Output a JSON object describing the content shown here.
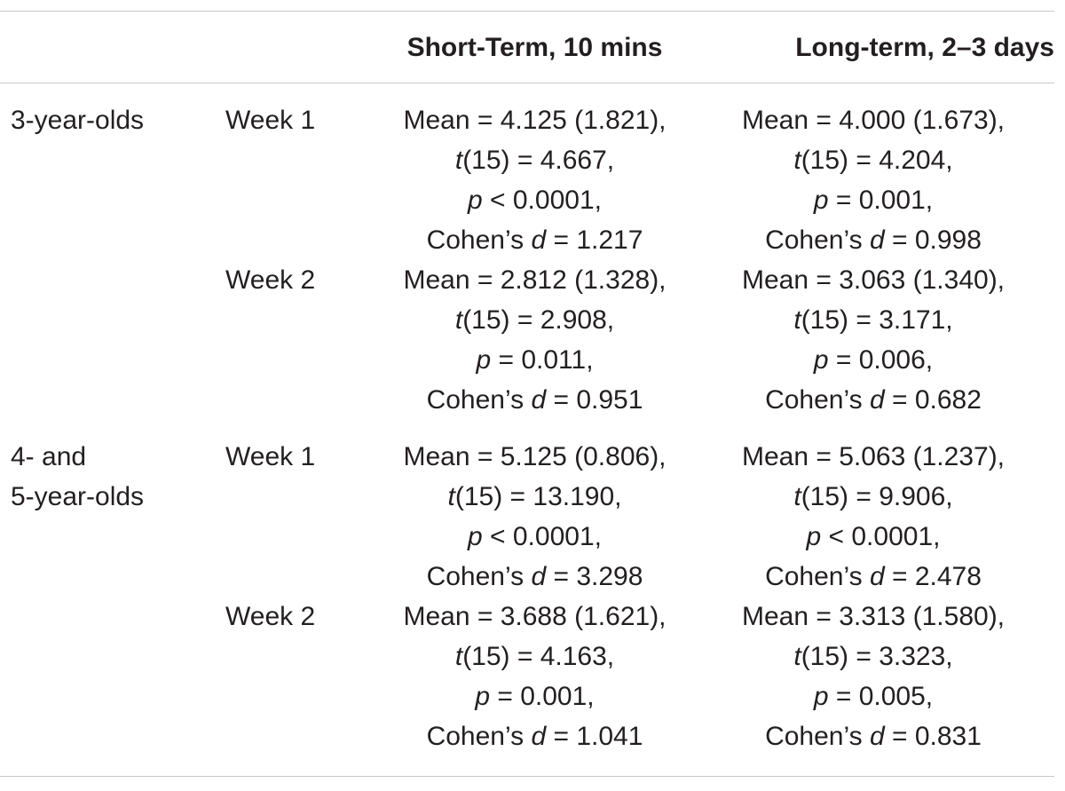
{
  "table": {
    "headers": {
      "group": "",
      "week": "",
      "short_term": "Short-Term, 10 mins",
      "long_term": "Long-term, 2–3 days"
    },
    "groups": [
      {
        "label_lines": [
          "3-year-olds"
        ],
        "rows": [
          {
            "week": "Week 1",
            "short_term": {
              "mean": "Mean = 4.125 (1.821),",
              "t_prefix": "t",
              "t_value": "(15) = 4.667,",
              "p_prefix": "p",
              "p_value": " < 0.0001,",
              "d_label": "Cohen’s ",
              "d_prefix": "d",
              "d_value": " = 1.217"
            },
            "long_term": {
              "mean": "Mean = 4.000 (1.673),",
              "t_prefix": "t",
              "t_value": "(15) = 4.204,",
              "p_prefix": "p",
              "p_value": " = 0.001,",
              "d_label": "Cohen’s ",
              "d_prefix": "d",
              "d_value": " = 0.998"
            }
          },
          {
            "week": "Week 2",
            "short_term": {
              "mean": "Mean = 2.812 (1.328),",
              "t_prefix": "t",
              "t_value": "(15) = 2.908,",
              "p_prefix": "p",
              "p_value": " = 0.011,",
              "d_label": "Cohen’s ",
              "d_prefix": "d",
              "d_value": " = 0.951"
            },
            "long_term": {
              "mean": "Mean = 3.063 (1.340),",
              "t_prefix": "t",
              "t_value": "(15) = 3.171,",
              "p_prefix": "p",
              "p_value": " = 0.006,",
              "d_label": "Cohen’s ",
              "d_prefix": "d",
              "d_value": " = 0.682"
            }
          }
        ]
      },
      {
        "label_lines": [
          "4- and",
          "5-year-olds"
        ],
        "rows": [
          {
            "week": "Week 1",
            "short_term": {
              "mean": "Mean = 5.125 (0.806),",
              "t_prefix": "t",
              "t_value": "(15) = 13.190,",
              "p_prefix": "p",
              "p_value": " < 0.0001,",
              "d_label": "Cohen’s ",
              "d_prefix": "d",
              "d_value": " = 3.298"
            },
            "long_term": {
              "mean": "Mean = 5.063 (1.237),",
              "t_prefix": "t",
              "t_value": "(15) = 9.906,",
              "p_prefix": "p",
              "p_value": " < 0.0001,",
              "d_label": "Cohen’s ",
              "d_prefix": "d",
              "d_value": " = 2.478"
            }
          },
          {
            "week": "Week 2",
            "short_term": {
              "mean": "Mean = 3.688 (1.621),",
              "t_prefix": "t",
              "t_value": "(15) = 4.163,",
              "p_prefix": "p",
              "p_value": " = 0.001,",
              "d_label": "Cohen’s ",
              "d_prefix": "d",
              "d_value": " = 1.041"
            },
            "long_term": {
              "mean": "Mean = 3.313 (1.580),",
              "t_prefix": "t",
              "t_value": "(15) = 3.323,",
              "p_prefix": "p",
              "p_value": " = 0.005,",
              "d_label": "Cohen’s ",
              "d_prefix": "d",
              "d_value": " = 0.831"
            }
          }
        ]
      }
    ]
  }
}
